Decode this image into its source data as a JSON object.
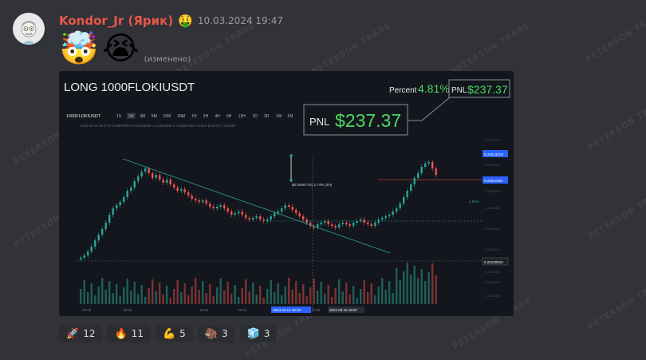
{
  "message": {
    "author": "Kondor_Jr (Ярик)",
    "author_emoji": "🤑",
    "timestamp": "10.03.2024 19:47",
    "emojis": [
      "🤯",
      "😭"
    ],
    "edited_label": "(изменено)"
  },
  "trade": {
    "title": "LONG 1000FLOKIUSDT",
    "percent_label": "Percent",
    "percent_value": "4.81%",
    "pnl_label": "PNL",
    "pnl_value": "$237.37"
  },
  "chart_toolbar": {
    "symbol": "1000FLOKIUSDT",
    "intervals": [
      "1S",
      "1M",
      "3M",
      "5M",
      "15M",
      "30M",
      "1H",
      "2H",
      "4H",
      "6H",
      "12H",
      "1D",
      "3D",
      "1W",
      "1M"
    ],
    "active_interval": "1M",
    "ohlc_line": "2024-03-10 19:47   O 0.24507090   H 0.24176090   L 0.24521090   C 0.24587090   A 6.62%   (0.21%)   V 1.572M"
  },
  "chart_data": {
    "type": "candlestick",
    "price_axis_labels": [
      "0.23213213",
      "0.25001861",
      "0.23130910"
    ],
    "x_tick_labels": [
      "18:29",
      "18:59",
      "18:50",
      "19:04",
      "18:59"
    ],
    "crosshair_labels": [
      "2024 03 10 19:33",
      "2024 03 10 19:07"
    ],
    "measure_label": "$0.00697751  2.74% (2H)",
    "percent_marker": "4.81%"
  },
  "reactions": [
    {
      "icon": "rocket-icon",
      "emoji": "🚀",
      "count": "12"
    },
    {
      "icon": "fire-icon",
      "emoji": "🔥",
      "count": "11"
    },
    {
      "icon": "flexed-biceps-icon",
      "emoji": "💪",
      "count": "5"
    },
    {
      "icon": "mammoth-icon",
      "emoji": "🦣",
      "count": "3"
    },
    {
      "icon": "ice-icon",
      "emoji": "🧊",
      "count": "3"
    }
  ],
  "watermark": "PETERSON TRADE",
  "colors": {
    "up": "#26a69a",
    "down": "#ef5350",
    "pnl_green": "#4cd964",
    "author": "#e8564a"
  }
}
